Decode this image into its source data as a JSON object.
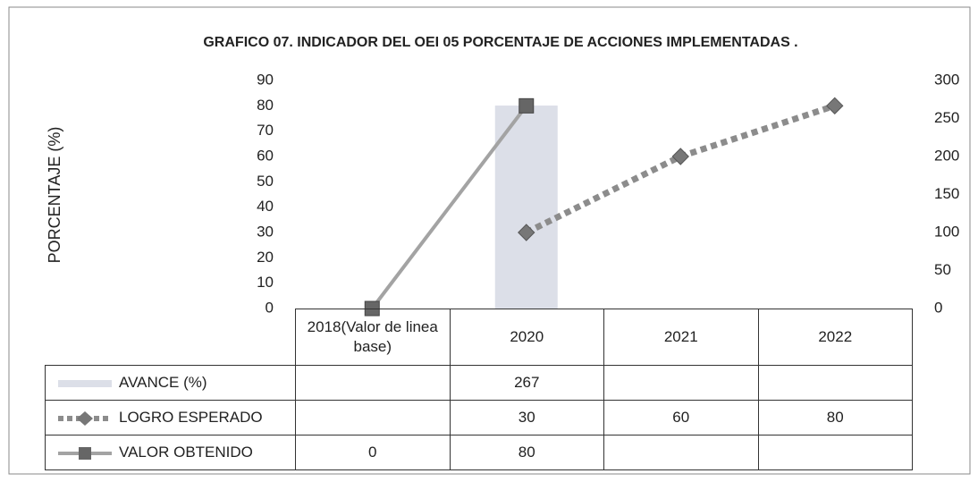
{
  "chart_data": {
    "type": "combo",
    "title": "GRAFICO 07. INDICADOR DEL OEI 05 PORCENTAJE DE ACCIONES IMPLEMENTADAS .",
    "y_label": "PORCENTAJE (%)",
    "categories": [
      "2018(Valor de linea base)",
      "2020",
      "2021",
      "2022"
    ],
    "ylim": [
      0,
      90
    ],
    "yticks": [
      0,
      10,
      20,
      30,
      40,
      50,
      60,
      70,
      80,
      90
    ],
    "y2lim": [
      0,
      300
    ],
    "y2ticks": [
      0,
      50,
      100,
      150,
      200,
      250,
      300
    ],
    "series": [
      {
        "name": "AVANCE (%)",
        "type": "bar",
        "axis": "y2",
        "color": "#dcdfe8",
        "values": [
          null,
          267,
          null,
          null
        ]
      },
      {
        "name": "LOGRO ESPERADO",
        "type": "line",
        "style": "dashed",
        "color": "#8c8c8c",
        "values": [
          null,
          30,
          60,
          80
        ]
      },
      {
        "name": "VALOR OBTENIDO",
        "type": "line",
        "style": "solid",
        "color": "#a3a3a3",
        "values": [
          0,
          80,
          null,
          null
        ]
      }
    ]
  }
}
